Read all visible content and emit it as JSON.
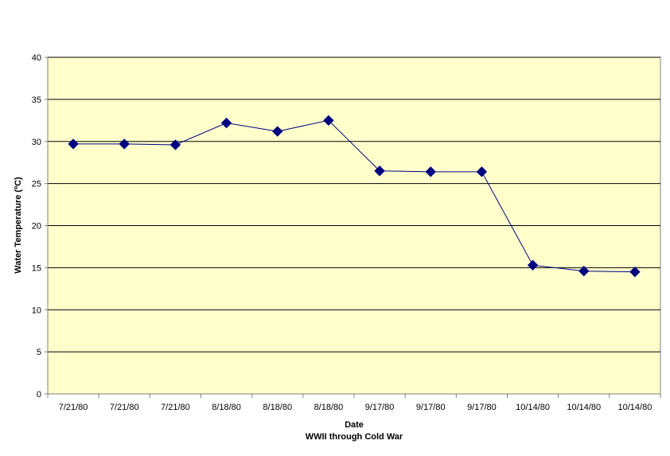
{
  "chart_data": {
    "type": "line",
    "title": "",
    "xlabel": "Date",
    "xlabel_sub": "WWII through Cold War",
    "ylabel": "Water Temperature (ºC)",
    "ylim": [
      0,
      40
    ],
    "yticks": [
      0,
      5,
      10,
      15,
      20,
      25,
      30,
      35,
      40
    ],
    "categories": [
      "7/21/80",
      "7/21/80",
      "7/21/80",
      "8/18/80",
      "8/18/80",
      "8/18/80",
      "9/17/80",
      "9/17/80",
      "9/17/80",
      "10/14/80",
      "10/14/80",
      "10/14/80"
    ],
    "series": [
      {
        "values": [
          29.7,
          29.7,
          29.6,
          32.2,
          31.2,
          32.5,
          26.5,
          26.4,
          26.4,
          15.3,
          14.6,
          14.5
        ]
      }
    ],
    "grid": true,
    "legend": "none",
    "colors": {
      "plot_background": "#FFFFCC",
      "series": "#000080",
      "grid": "#000000",
      "axis": "#808080"
    }
  }
}
